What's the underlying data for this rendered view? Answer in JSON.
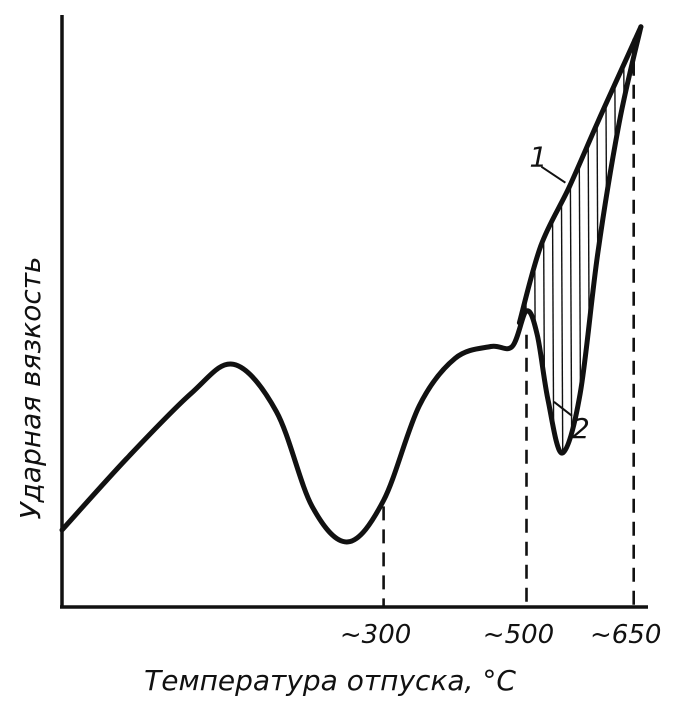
{
  "chart_data": {
    "type": "line",
    "title": "",
    "xlabel": "Температура отпуска, °С",
    "ylabel": "Ударная вязкость",
    "x_ticks": [
      {
        "value": 300,
        "label": "~300"
      },
      {
        "value": 500,
        "label": "~500"
      },
      {
        "value": 650,
        "label": "~650"
      }
    ],
    "xlim": [
      -150,
      670
    ],
    "ylim": [
      0,
      100
    ],
    "grid": false,
    "series": [
      {
        "name": "1",
        "x": [
          490,
          520,
          560,
          600,
          630,
          660
        ],
        "y": [
          48,
          61,
          71,
          82,
          90,
          98
        ]
      },
      {
        "name": "2",
        "x": [
          -150,
          -60,
          30,
          90,
          150,
          200,
          250,
          300,
          350,
          400,
          450,
          480,
          500,
          515,
          530,
          550,
          575,
          600,
          630,
          660
        ],
        "y": [
          13,
          25,
          36,
          41,
          33,
          17,
          11,
          18,
          34,
          42,
          44,
          44,
          50,
          46,
          35,
          26,
          36,
          60,
          82,
          98
        ]
      }
    ],
    "hatched_region": {
      "between": [
        "1",
        "2"
      ],
      "x_range": [
        500,
        660
      ]
    },
    "reference_lines_x": [
      300,
      500,
      650
    ]
  }
}
